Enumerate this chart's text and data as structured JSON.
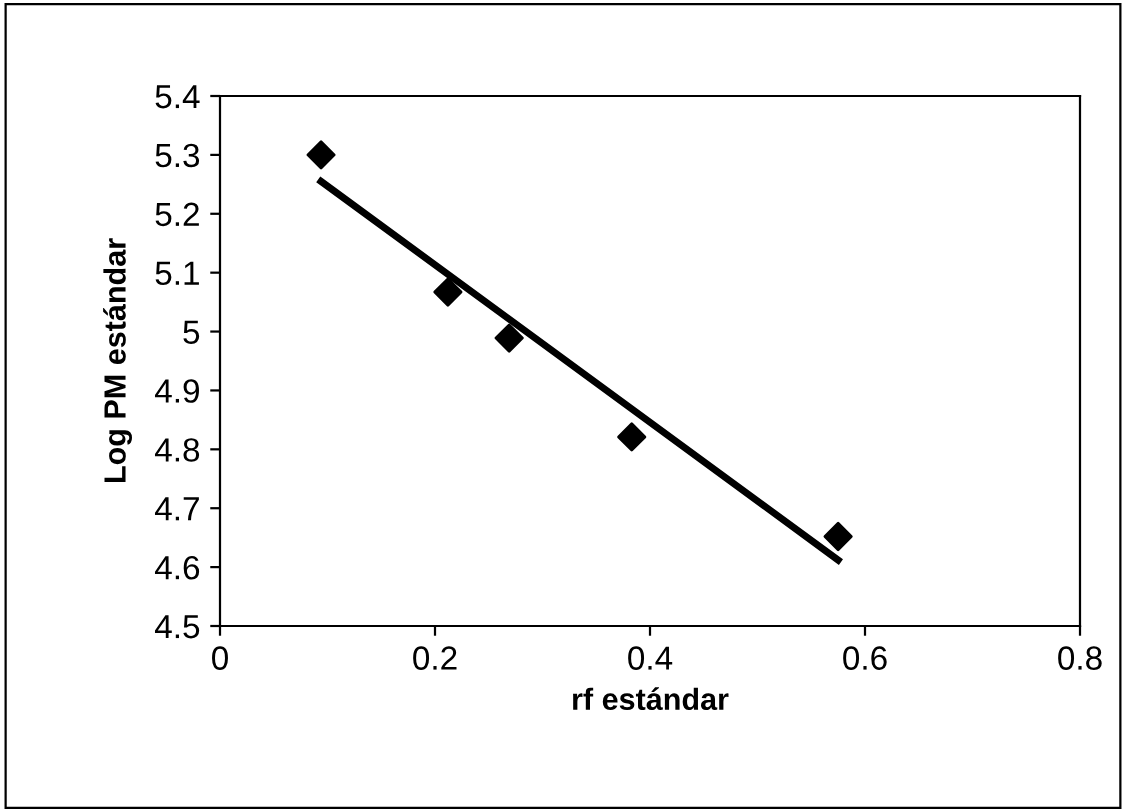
{
  "chart_data": {
    "type": "scatter",
    "xlabel": "rf estándar",
    "ylabel": "Log PM estándar",
    "series": [
      {
        "color": "#000000",
        "marker": "diamond",
        "x": [
          0.094,
          0.212,
          0.269,
          0.383,
          0.575
        ],
        "values": [
          5.3,
          5.067,
          4.989,
          4.821,
          4.652
        ]
      },
      {
        "type": "line",
        "color": "#000000",
        "marker": "none",
        "line_style": "solid",
        "x": [
          0.094,
          0.575
        ],
        "values": [
          5.255,
          4.612
        ]
      }
    ],
    "xlim": [
      0,
      0.8
    ],
    "xticks": [
      0,
      0.2,
      0.4,
      0.6,
      0.8
    ],
    "ylim": [
      4.5,
      5.4
    ],
    "yticks": [
      4.5,
      4.6,
      4.7,
      4.8,
      4.9,
      5,
      5.1,
      5.2,
      5.3,
      5.4
    ],
    "grid": false,
    "legend": false
  }
}
